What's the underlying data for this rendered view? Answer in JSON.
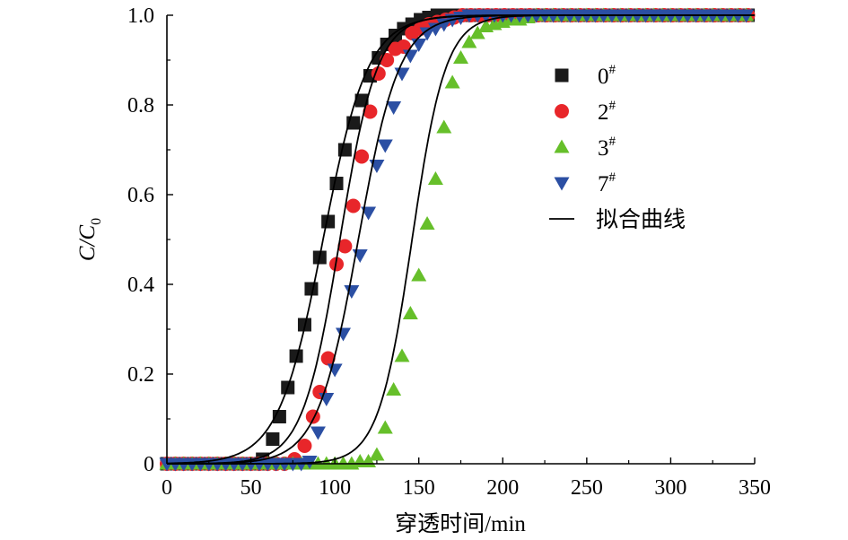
{
  "chart_data": {
    "type": "scatter",
    "title": "",
    "xlabel": "穿透时间/min",
    "ylabel_main": "C/C",
    "ylabel_sub": "0",
    "xlim": [
      0,
      350
    ],
    "ylim": [
      0,
      1.0
    ],
    "xticks": [
      "0",
      "50",
      "100",
      "150",
      "200",
      "250",
      "300",
      "350"
    ],
    "yticks": [
      "0",
      "0.2",
      "0.4",
      "0.6",
      "0.8",
      "1.0"
    ],
    "grid": false,
    "legend_position": "right",
    "fit_label": "拟合曲线",
    "fit_color": "#000000",
    "series": [
      {
        "name": "0",
        "superscript": "#",
        "marker": "square",
        "color": "#1a1a1a",
        "x": [
          0,
          5,
          10,
          15,
          20,
          25,
          30,
          35,
          40,
          45,
          50,
          55,
          57,
          63,
          67,
          72,
          77,
          82,
          86,
          91,
          96,
          101,
          106,
          111,
          116,
          121,
          126,
          131,
          136,
          141,
          146,
          151,
          156,
          161,
          166,
          171,
          176,
          181,
          186,
          191,
          196,
          201,
          206,
          211,
          216,
          221,
          226,
          231,
          236,
          241,
          246,
          251,
          256,
          261,
          266,
          271,
          276,
          281,
          286,
          291,
          296,
          301,
          306,
          311,
          316,
          321,
          326,
          331,
          336,
          341,
          346
        ],
        "y": [
          0,
          0,
          0,
          0,
          0,
          0,
          0,
          0,
          0,
          0,
          0,
          0,
          0.01,
          0.055,
          0.105,
          0.17,
          0.24,
          0.31,
          0.39,
          0.46,
          0.54,
          0.625,
          0.7,
          0.76,
          0.81,
          0.865,
          0.905,
          0.935,
          0.955,
          0.97,
          0.98,
          0.99,
          0.995,
          1.0,
          1.0,
          1.0,
          1.0,
          1.0,
          1.0,
          1.0,
          1.0,
          1.0,
          1.0,
          1.0,
          1.0,
          1.0,
          1.0,
          1.0,
          1.0,
          1.0,
          1.0,
          1.0,
          1.0,
          1.0,
          1.0,
          1.0,
          1.0,
          1.0,
          1.0,
          1.0,
          1.0,
          1.0,
          1.0,
          1.0,
          1.0,
          1.0,
          1.0,
          1.0,
          1.0,
          1.0,
          1.0
        ],
        "fit": {
          "x0": 93,
          "k": 0.075
        }
      },
      {
        "name": "2",
        "superscript": "#",
        "marker": "circle",
        "color": "#e8262a",
        "x": [
          0,
          5,
          10,
          15,
          20,
          25,
          30,
          35,
          40,
          45,
          50,
          55,
          60,
          65,
          70,
          76,
          82,
          87,
          91,
          96,
          101,
          106,
          111,
          116,
          121,
          126,
          131,
          136,
          141,
          146,
          151,
          156,
          161,
          166,
          171,
          176,
          181,
          186,
          191,
          196,
          201,
          206,
          211,
          216,
          221,
          226,
          231,
          236,
          241,
          246,
          251,
          256,
          261,
          266,
          271,
          276,
          281,
          286,
          291,
          296,
          301,
          306,
          311,
          316,
          321,
          326,
          331,
          336,
          341,
          346
        ],
        "y": [
          0,
          0,
          0,
          0,
          0,
          0,
          0,
          0,
          0,
          0,
          0,
          0,
          0,
          0,
          0,
          0.01,
          0.04,
          0.105,
          0.16,
          0.235,
          0.445,
          0.485,
          0.575,
          0.685,
          0.785,
          0.87,
          0.9,
          0.925,
          0.93,
          0.96,
          0.97,
          0.98,
          0.985,
          0.99,
          0.995,
          1.0,
          1.0,
          1.0,
          1.0,
          1.0,
          1.0,
          1.0,
          1.0,
          1.0,
          1.0,
          1.0,
          1.0,
          1.0,
          1.0,
          1.0,
          1.0,
          1.0,
          1.0,
          1.0,
          1.0,
          1.0,
          1.0,
          1.0,
          1.0,
          1.0,
          1.0,
          1.0,
          1.0,
          1.0,
          1.0,
          1.0,
          1.0,
          1.0,
          1.0,
          1.0
        ],
        "fit": {
          "x0": 103,
          "k": 0.09
        }
      },
      {
        "name": "3",
        "superscript": "#",
        "marker": "triangle-up",
        "color": "#66bf2a",
        "x": [
          0,
          5,
          10,
          15,
          20,
          25,
          30,
          35,
          40,
          45,
          50,
          55,
          60,
          65,
          70,
          75,
          80,
          85,
          90,
          95,
          100,
          105,
          110,
          115,
          120,
          125,
          130,
          135,
          140,
          145,
          150,
          155,
          160,
          165,
          170,
          175,
          180,
          185,
          190,
          195,
          200,
          205,
          210,
          215,
          220,
          225,
          230,
          235,
          240,
          245,
          250,
          255,
          260,
          265,
          270,
          275,
          280,
          285,
          290,
          295,
          300,
          305,
          310,
          315,
          320,
          325,
          330,
          335,
          340,
          345
        ],
        "y": [
          0,
          0,
          0,
          0,
          0,
          0,
          0,
          0,
          0,
          0,
          0,
          0,
          0,
          0,
          0,
          0,
          0,
          0,
          0,
          0,
          0,
          0,
          0,
          0.005,
          0.005,
          0.02,
          0.08,
          0.165,
          0.24,
          0.335,
          0.42,
          0.535,
          0.635,
          0.75,
          0.85,
          0.905,
          0.94,
          0.96,
          0.975,
          0.98,
          0.985,
          0.99,
          0.99,
          0.995,
          1.0,
          1.0,
          1.0,
          1.0,
          1.0,
          1.0,
          1.0,
          1.0,
          1.0,
          1.0,
          1.0,
          1.0,
          1.0,
          1.0,
          1.0,
          1.0,
          1.0,
          1.0,
          1.0,
          1.0,
          1.0,
          1.0,
          1.0,
          1.0,
          1.0,
          1.0
        ],
        "fit": {
          "x0": 146,
          "k": 0.1
        }
      },
      {
        "name": "7",
        "superscript": "#",
        "marker": "triangle-down",
        "color": "#2b4fa3",
        "x": [
          0,
          5,
          10,
          15,
          20,
          25,
          30,
          35,
          40,
          45,
          50,
          55,
          60,
          65,
          70,
          75,
          80,
          85,
          90,
          95,
          100,
          105,
          110,
          115,
          120,
          125,
          130,
          135,
          140,
          145,
          150,
          155,
          160,
          165,
          170,
          175,
          180,
          185,
          190,
          195,
          200,
          205,
          210,
          215,
          220,
          225,
          230,
          235,
          240,
          245,
          250,
          255,
          260,
          265,
          270,
          275,
          280,
          285,
          290,
          295,
          300,
          305,
          310,
          315,
          320,
          325,
          330,
          335,
          340,
          345
        ],
        "y": [
          0,
          0,
          0,
          0,
          0,
          0,
          0,
          0,
          0,
          0,
          0,
          0,
          0,
          0,
          0,
          0,
          0,
          0.005,
          0.07,
          0.145,
          0.21,
          0.29,
          0.385,
          0.465,
          0.56,
          0.665,
          0.71,
          0.795,
          0.87,
          0.91,
          0.935,
          0.96,
          0.97,
          0.98,
          0.99,
          0.995,
          1.0,
          1.0,
          1.0,
          1.0,
          1.0,
          1.0,
          1.0,
          1.0,
          1.0,
          1.0,
          1.0,
          1.0,
          1.0,
          1.0,
          1.0,
          1.0,
          1.0,
          1.0,
          1.0,
          1.0,
          1.0,
          1.0,
          1.0,
          1.0,
          1.0,
          1.0,
          1.0,
          1.0,
          1.0,
          1.0,
          1.0,
          1.0,
          1.0,
          1.0
        ],
        "fit": {
          "x0": 114,
          "k": 0.082
        }
      }
    ]
  }
}
